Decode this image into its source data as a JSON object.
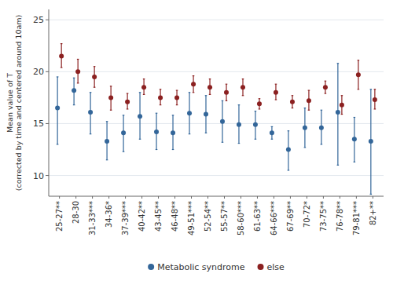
{
  "chart_data": {
    "type": "dot",
    "categories": [
      "25-27**",
      "28-30",
      "31-33***",
      "34-36*",
      "37-39***",
      "40-42**",
      "43-45**",
      "46-48**",
      "49-51***",
      "52-54**",
      "55-57**",
      "58-60***",
      "61-63**",
      "64-66***",
      "67-69**",
      "70-72*",
      "73-75**",
      "76-78**",
      "79-81***",
      "82+**"
    ],
    "series": [
      {
        "name": "Metabolic syndrome",
        "color": "#336699",
        "values": [
          16.5,
          18.2,
          16.1,
          13.3,
          14.1,
          15.7,
          14.2,
          14.1,
          16.0,
          15.9,
          15.2,
          14.9,
          14.9,
          14.1,
          12.5,
          14.6,
          14.6,
          16.1,
          13.5,
          13.3
        ],
        "ci_low": [
          13.0,
          16.8,
          14.0,
          11.5,
          12.3,
          13.5,
          12.5,
          12.5,
          14.0,
          14.1,
          13.2,
          13.1,
          13.5,
          13.5,
          10.5,
          12.7,
          13.0,
          11.0,
          11.3,
          8.2
        ],
        "ci_high": [
          19.5,
          19.4,
          18.0,
          15.2,
          15.8,
          18.0,
          16.0,
          15.8,
          18.0,
          17.7,
          17.2,
          16.8,
          16.2,
          14.7,
          14.3,
          16.5,
          16.3,
          20.8,
          15.6,
          18.3
        ]
      },
      {
        "name": "else",
        "color": "#8B2020",
        "values": [
          21.5,
          20.0,
          19.5,
          17.5,
          17.1,
          18.5,
          17.5,
          17.5,
          18.8,
          18.5,
          18.0,
          18.5,
          16.9,
          18.0,
          17.1,
          17.2,
          18.5,
          16.8,
          19.7,
          17.3
        ],
        "ci_low": [
          20.4,
          18.9,
          18.5,
          16.3,
          16.4,
          17.8,
          16.8,
          16.8,
          18.0,
          17.8,
          17.2,
          17.7,
          16.4,
          17.3,
          16.5,
          16.3,
          17.9,
          15.9,
          18.3,
          16.4
        ],
        "ci_high": [
          22.7,
          21.2,
          20.5,
          18.6,
          17.9,
          19.3,
          18.3,
          18.2,
          19.6,
          19.3,
          18.8,
          19.3,
          17.4,
          18.8,
          17.7,
          18.2,
          19.1,
          17.7,
          21.1,
          18.3
        ]
      }
    ],
    "ylabel": "Mean value of T\n(corrected by time and centered around 10am)",
    "ylim": [
      8,
      26
    ],
    "yticks": [
      10,
      15,
      20,
      25
    ],
    "grid": true,
    "legend": "bottom"
  }
}
